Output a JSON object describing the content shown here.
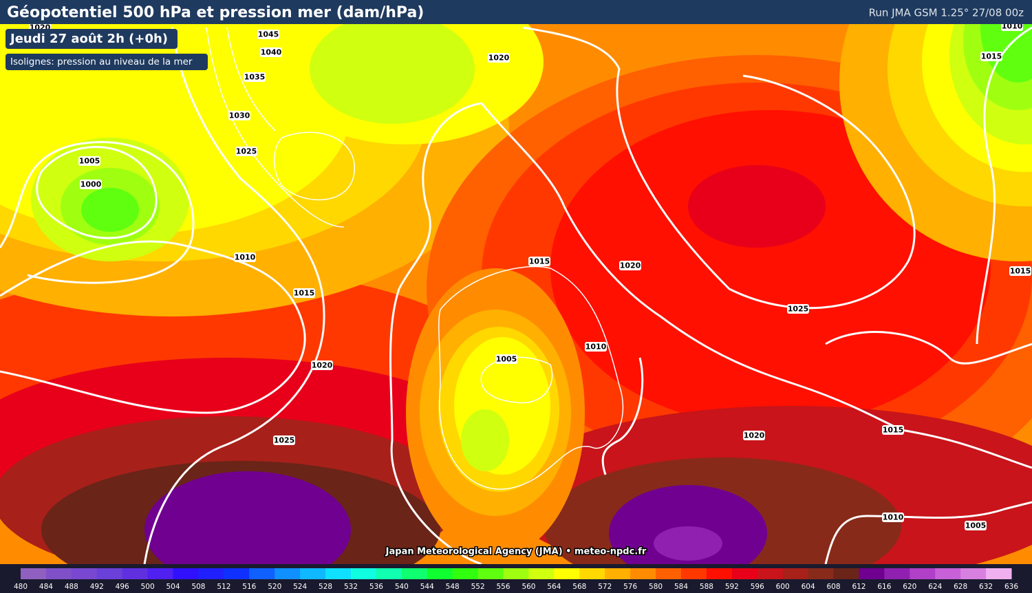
{
  "header": {
    "title": "Géopotentiel 500 hPa et pression mer (dam/hPa)",
    "run": "Run JMA GSM 1.25° 27/08 00z"
  },
  "date_label": "Jeudi 27 août 2h (+0h)",
  "isoline_note": "Isolignes: pression au niveau de la mer",
  "isobar_labels": [
    1020,
    1045,
    1040,
    1035,
    1030,
    1025,
    1005,
    1000,
    1010,
    1015,
    1020,
    1025,
    1020,
    1015,
    1020,
    1005,
    1010,
    1025,
    1020,
    1015,
    1010,
    1005,
    1010,
    1015,
    1015
  ],
  "credit": "Japan Meteorological Agency (JMA) • meteo-npdc.fr",
  "colorbar": {
    "labels": [
      480,
      484,
      488,
      492,
      496,
      500,
      504,
      508,
      512,
      516,
      520,
      524,
      528,
      532,
      536,
      540,
      544,
      548,
      552,
      556,
      560,
      564,
      568,
      572,
      576,
      580,
      584,
      588,
      592,
      596,
      600,
      604,
      608,
      612,
      616,
      620,
      624,
      628,
      632,
      636
    ],
    "colors": [
      "#9060c0",
      "#8050c8",
      "#7848d0",
      "#6a40d8",
      "#6030e0",
      "#5020f0",
      "#3010ff",
      "#2020ff",
      "#1030ff",
      "#1060ff",
      "#1090ff",
      "#10b8ff",
      "#10e0ff",
      "#10ffe0",
      "#10ffb0",
      "#10ff70",
      "#10ff30",
      "#30ff10",
      "#60ff10",
      "#a0ff10",
      "#d0ff10",
      "#ffff00",
      "#ffd800",
      "#ffb000",
      "#ff8c00",
      "#ff6000",
      "#ff3800",
      "#ff1000",
      "#e8001a",
      "#c8141a",
      "#a8201a",
      "#882a1a",
      "#6a2418",
      "#700090",
      "#9020b0",
      "#b040c8",
      "#c860d8",
      "#d880e0",
      "#f0b0f0"
    ]
  }
}
